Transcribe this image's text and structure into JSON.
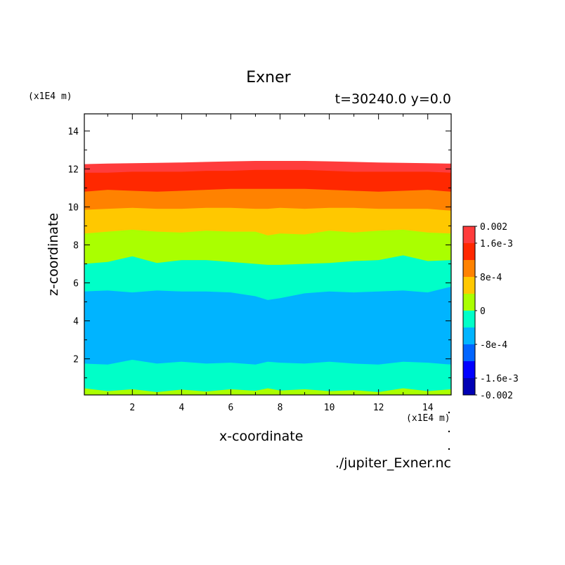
{
  "chart_data": {
    "type": "heatmap",
    "title": "Exner",
    "subtitle": "t=30240.0 y=0.0",
    "xlabel": "x-coordinate",
    "ylabel": "z-coordinate",
    "x_unit": "(x1E4 m)",
    "y_unit": "(x1E4 m)",
    "xlim": [
      0.05,
      14.95
    ],
    "ylim": [
      0.1,
      14.9
    ],
    "x_ticks": [
      2,
      4,
      6,
      8,
      10,
      12,
      14
    ],
    "y_ticks": [
      2,
      4,
      6,
      8,
      10,
      12,
      14
    ],
    "x_tick_labels": [
      "2",
      "4",
      "6",
      "8",
      "10",
      "12",
      "14"
    ],
    "y_tick_labels": [
      "2",
      "4",
      "6",
      "8",
      "10",
      "12",
      "14"
    ],
    "grid": false,
    "legend": "right colorbar",
    "source_file": "./jupiter_Exner.nc",
    "colorbar": {
      "levels": [
        -0.002,
        -0.0016,
        -0.0012,
        -0.0008,
        -0.0004,
        0,
        0.0004,
        0.0008,
        0.0012,
        0.0016,
        0.002
      ],
      "labels": [
        {
          "value": 0.002,
          "text": "0.002"
        },
        {
          "value": 0.0016,
          "text": "1.6e-3"
        },
        {
          "value": 0.0008,
          "text": "8e-4"
        },
        {
          "value": 0,
          "text": "0"
        },
        {
          "value": -0.0008,
          "text": "-8e-4"
        },
        {
          "value": -0.0016,
          "text": "-1.6e-3"
        },
        {
          "value": -0.002,
          "text": "-0.002"
        }
      ],
      "colors": [
        "#0000b4",
        "#0000ff",
        "#0064ff",
        "#00b4ff",
        "#00ffc8",
        "#aaff00",
        "#ffc800",
        "#ff8200",
        "#ff2800",
        "#ff3c3c"
      ]
    },
    "x": [
      0.05,
      1,
      2,
      3,
      4,
      5,
      6,
      7,
      7.5,
      8,
      9,
      10,
      11,
      12,
      13,
      14,
      14.95
    ],
    "contour_bands": [
      {
        "color": "#aaff00",
        "upper_z": [
          0.45,
          0.3,
          0.4,
          0.25,
          0.38,
          0.28,
          0.4,
          0.32,
          0.45,
          0.33,
          0.4,
          0.3,
          0.35,
          0.25,
          0.45,
          0.3,
          0.4
        ]
      },
      {
        "color": "#00ffc8",
        "upper_z": [
          1.75,
          1.7,
          1.95,
          1.75,
          1.85,
          1.75,
          1.8,
          1.7,
          1.85,
          1.8,
          1.75,
          1.85,
          1.75,
          1.7,
          1.85,
          1.8,
          1.7
        ]
      },
      {
        "color": "#00b4ff",
        "upper_z": [
          5.55,
          5.6,
          5.5,
          5.6,
          5.55,
          5.55,
          5.5,
          5.3,
          5.1,
          5.2,
          5.45,
          5.55,
          5.5,
          5.55,
          5.6,
          5.5,
          5.8
        ]
      },
      {
        "color": "#00ffc8",
        "upper_z": [
          7.0,
          7.1,
          7.4,
          7.05,
          7.2,
          7.2,
          7.1,
          7.0,
          6.95,
          6.95,
          7.0,
          7.05,
          7.15,
          7.2,
          7.45,
          7.15,
          7.2
        ]
      },
      {
        "color": "#aaff00",
        "upper_z": [
          8.6,
          8.7,
          8.8,
          8.7,
          8.65,
          8.75,
          8.7,
          8.7,
          8.5,
          8.6,
          8.55,
          8.75,
          8.65,
          8.75,
          8.8,
          8.65,
          8.6
        ]
      },
      {
        "color": "#ffc800",
        "upper_z": [
          9.85,
          9.9,
          9.95,
          9.9,
          9.9,
          9.95,
          9.95,
          9.9,
          9.9,
          9.95,
          9.9,
          9.95,
          9.95,
          9.9,
          9.9,
          9.9,
          9.8
        ]
      },
      {
        "color": "#ff8200",
        "upper_z": [
          10.8,
          10.9,
          10.85,
          10.8,
          10.85,
          10.9,
          10.95,
          10.95,
          10.95,
          10.95,
          10.95,
          10.9,
          10.85,
          10.8,
          10.85,
          10.9,
          10.8
        ]
      },
      {
        "color": "#ff2800",
        "upper_z": [
          11.8,
          11.8,
          11.85,
          11.85,
          11.85,
          11.9,
          11.9,
          11.95,
          11.95,
          11.95,
          11.95,
          11.9,
          11.85,
          11.85,
          11.85,
          11.85,
          11.8
        ]
      },
      {
        "color": "#ff3c3c",
        "upper_z": [
          12.25,
          12.28,
          12.3,
          12.32,
          12.34,
          12.37,
          12.4,
          12.42,
          12.42,
          12.42,
          12.42,
          12.4,
          12.37,
          12.34,
          12.32,
          12.3,
          12.28
        ]
      }
    ]
  }
}
